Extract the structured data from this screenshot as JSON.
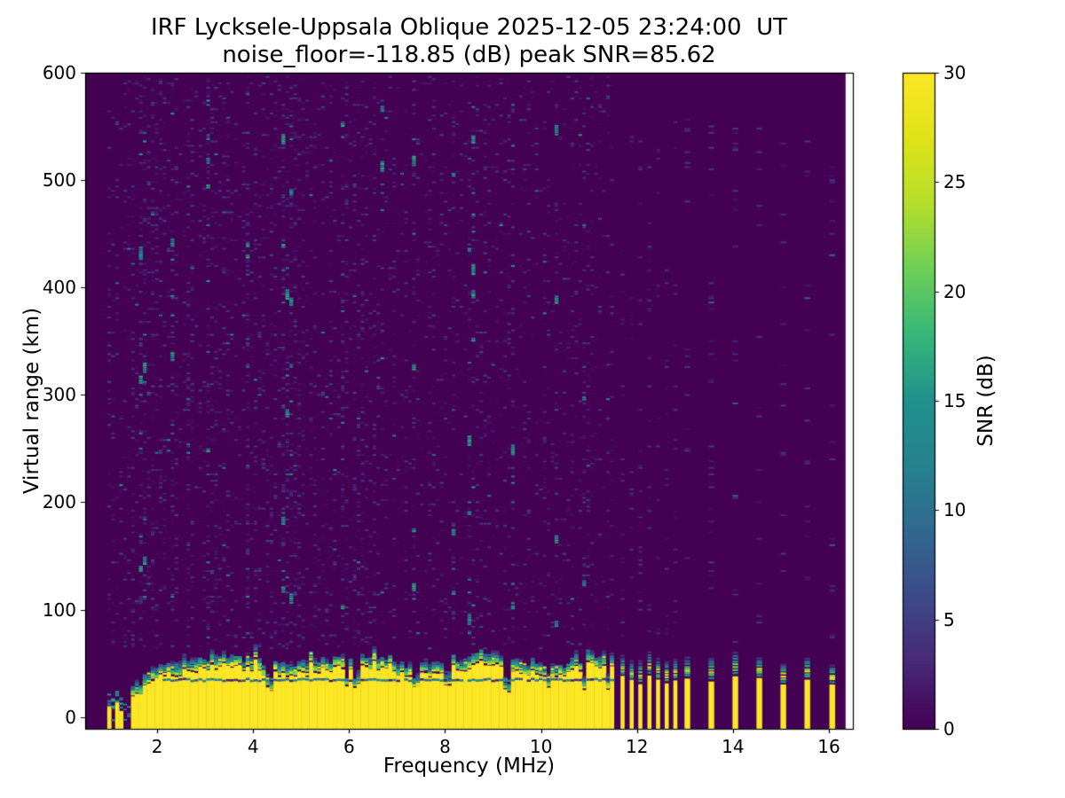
{
  "figure": {
    "background_color": "#ffffff"
  },
  "chart_data": {
    "type": "heatmap",
    "title": "IRF Lycksele-Uppsala Oblique 2025-12-05 23:24:00  UT",
    "subtitle": "noise_floor=-118.85 (dB) peak SNR=85.62",
    "xlabel": "Frequency (MHz)",
    "ylabel": "Virtual range (km)",
    "colorbar_label": "SNR (dB)",
    "x_ticks": [
      2,
      4,
      6,
      8,
      10,
      12,
      14,
      16
    ],
    "y_ticks": [
      0,
      100,
      200,
      300,
      400,
      500,
      600
    ],
    "colorbar_ticks": [
      0,
      5,
      10,
      15,
      20,
      25,
      30
    ],
    "xlim_mhz": [
      0.5,
      16.5
    ],
    "ylim_km": [
      -11,
      600
    ],
    "snr_range_db": [
      0,
      30
    ],
    "noise_floor_db": -118.85,
    "peak_snr_db": 85.62,
    "colormap": "viridis",
    "viridis_stops": [
      "#440154",
      "#482878",
      "#3e4a89",
      "#31688e",
      "#26828e",
      "#21918c",
      "#35b779",
      "#6ece58",
      "#b5de2b",
      "#dfe318",
      "#fde725"
    ],
    "background_value_color": "#440154",
    "saturated_color": "#fde725",
    "data_extent_mhz": [
      1.0,
      16.35
    ],
    "continuous_sweep_mhz": [
      1.0,
      11.55
    ],
    "discrete_step_frequencies_mhz": [
      11.7,
      11.89,
      12.07,
      12.26,
      12.44,
      12.62,
      12.8,
      13.05,
      13.55,
      14.05,
      14.55,
      15.05,
      15.55,
      16.07
    ],
    "ground_echo": {
      "band_top_km_low_freq": 16,
      "band_top_km_main": 43,
      "band_top_jitter_km": 6,
      "dark_lacuna_km": 34.5,
      "notch_frequencies_mhz": [
        4.35,
        5.95,
        6.15,
        7.4,
        8.05,
        9.3,
        10.15,
        10.9,
        11.4
      ],
      "discrete_bar_top_km": 32,
      "tip_top_km": 58
    },
    "noise_hot_columns_mhz": [
      1.63,
      1.72,
      2.33,
      3.05,
      3.9,
      4.67,
      4.82,
      5.9,
      6.7,
      7.35,
      8.2,
      8.55,
      9.4,
      10.3,
      10.9
    ],
    "grid": {
      "df_mhz": 0.0825,
      "dkm": 2
    },
    "random_seed": 20251205,
    "legend_position": "colorbar-right",
    "grid_lines": "off"
  }
}
